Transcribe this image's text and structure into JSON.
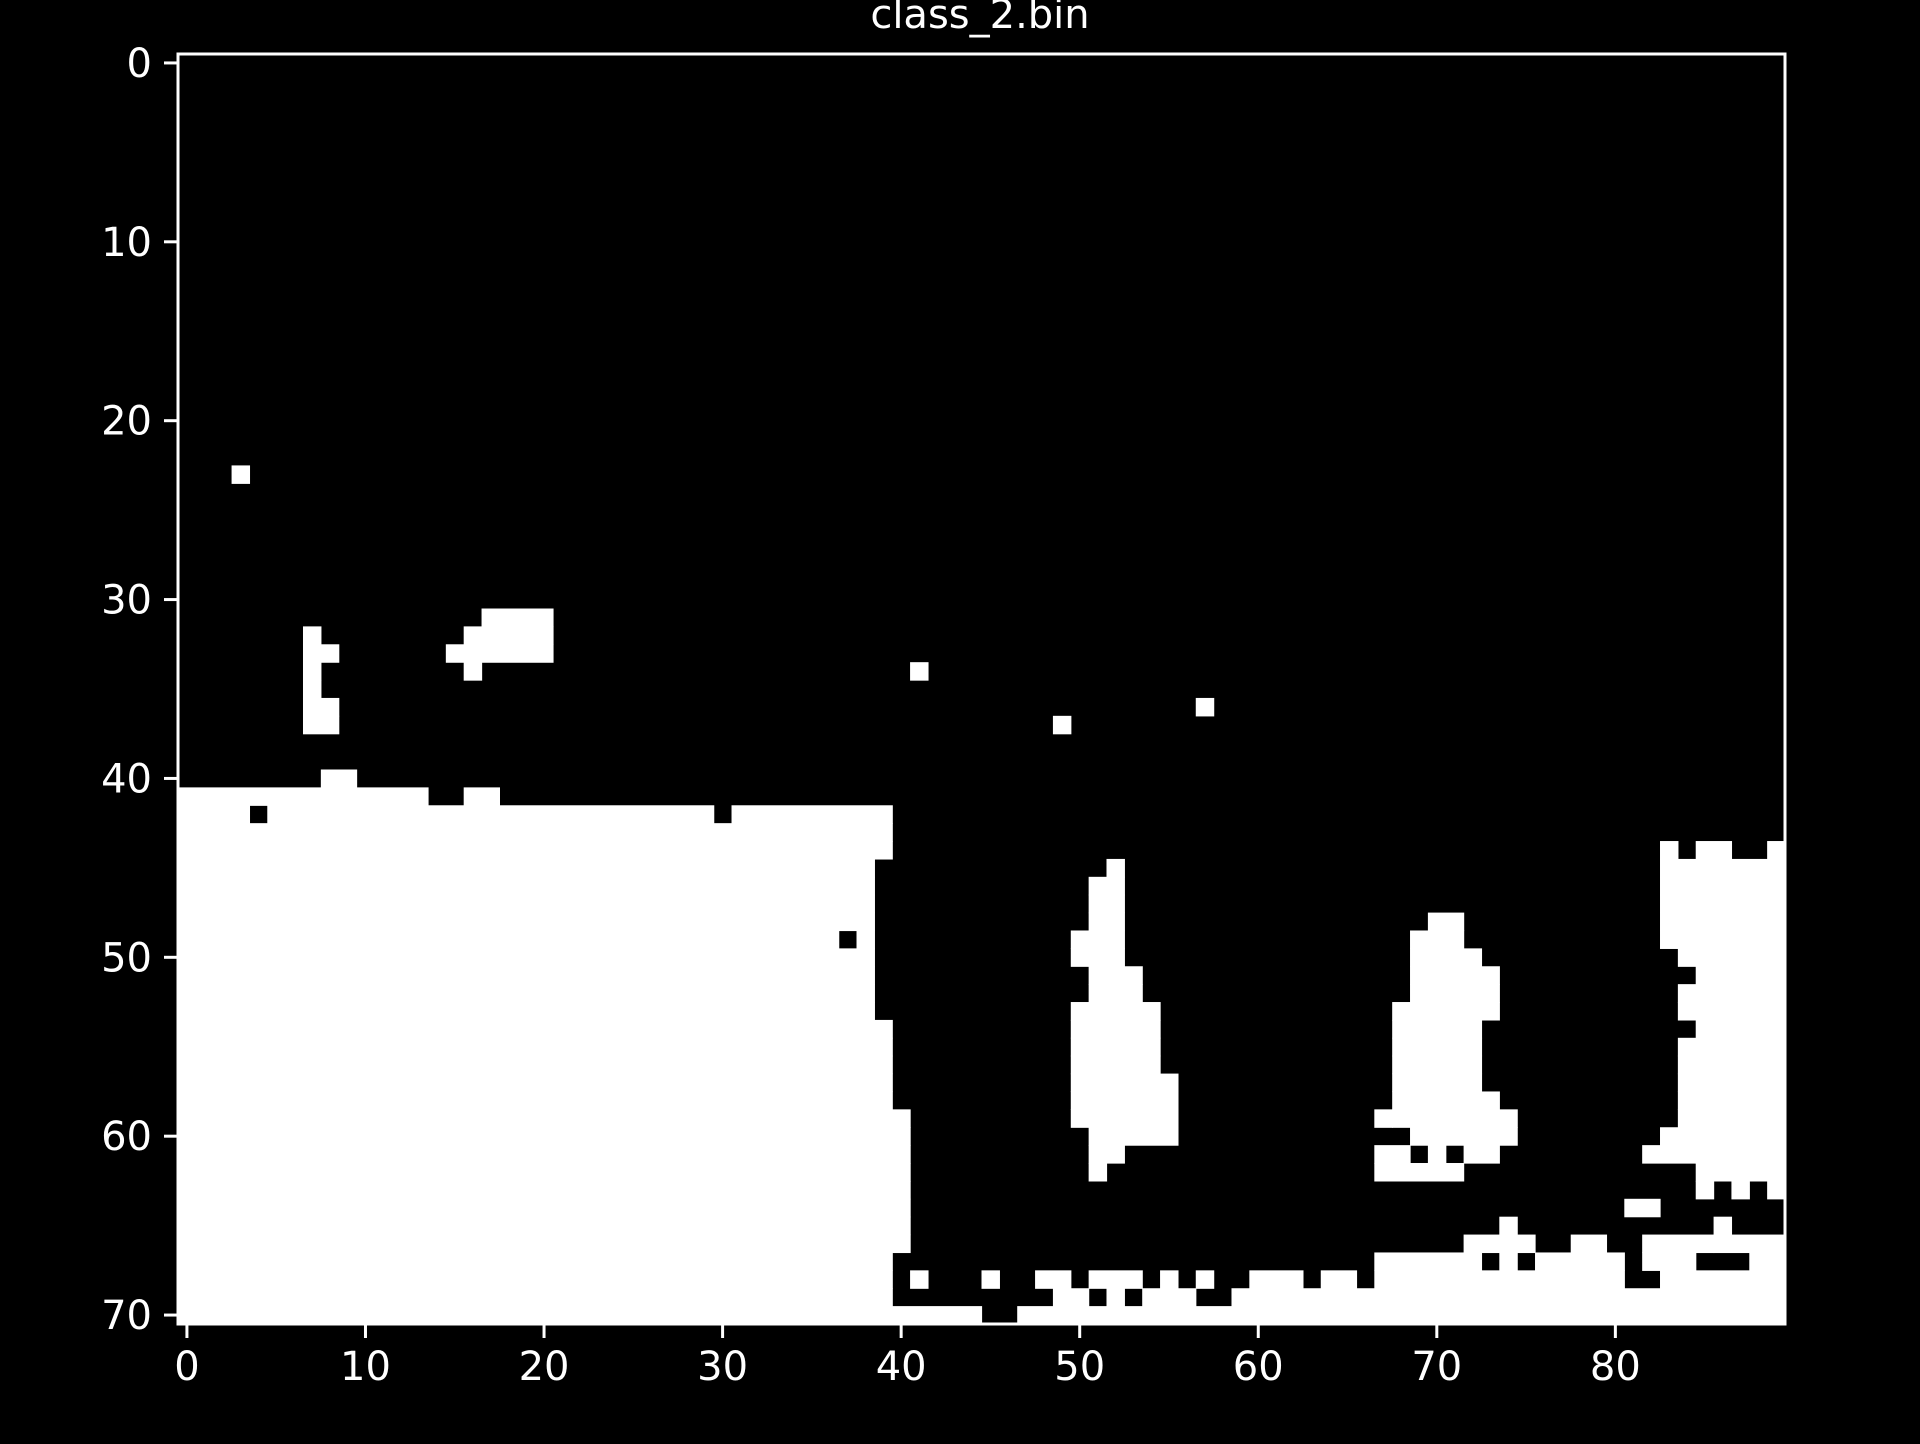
{
  "colors": {
    "background": "#000000",
    "foreground": "#ffffff",
    "mask_on": "#ffffff",
    "mask_off": "#000000"
  },
  "chart_data": {
    "type": "heatmap",
    "title": "class_2.bin",
    "xlabel": "",
    "ylabel": "",
    "grid": false,
    "legend": "none",
    "colormap": "binary (0 = black, 1 = white)",
    "width": 90,
    "height": 71,
    "xlim": [
      -0.5,
      89.5
    ],
    "ylim": [
      70.5,
      -0.5
    ],
    "x_ticks": [
      0,
      10,
      20,
      30,
      40,
      50,
      60,
      70,
      80
    ],
    "x_tick_labels": [
      "0",
      "10",
      "20",
      "30",
      "40",
      "50",
      "60",
      "70",
      "80"
    ],
    "y_ticks": [
      0,
      10,
      20,
      30,
      40,
      50,
      60,
      70
    ],
    "y_tick_labels": [
      "0",
      "10",
      "20",
      "30",
      "40",
      "50",
      "60",
      "70"
    ],
    "white_pixel_runs": [
      [
        23,
        3,
        3
      ],
      [
        31,
        17,
        20
      ],
      [
        32,
        7,
        7
      ],
      [
        32,
        16,
        20
      ],
      [
        33,
        7,
        8
      ],
      [
        33,
        15,
        20
      ],
      [
        34,
        7,
        7
      ],
      [
        34,
        16,
        16
      ],
      [
        34,
        41,
        41
      ],
      [
        35,
        7,
        7
      ],
      [
        36,
        7,
        8
      ],
      [
        36,
        57,
        57
      ],
      [
        37,
        7,
        8
      ],
      [
        37,
        49,
        49
      ],
      [
        40,
        8,
        9
      ],
      [
        41,
        0,
        13
      ],
      [
        41,
        16,
        17
      ],
      [
        42,
        0,
        3
      ],
      [
        42,
        5,
        29
      ],
      [
        42,
        31,
        39
      ],
      [
        43,
        0,
        39
      ],
      [
        44,
        0,
        39
      ],
      [
        44,
        83,
        83
      ],
      [
        44,
        85,
        86
      ],
      [
        44,
        89,
        89
      ],
      [
        45,
        0,
        38
      ],
      [
        45,
        52,
        52
      ],
      [
        45,
        83,
        89
      ],
      [
        46,
        0,
        38
      ],
      [
        46,
        51,
        52
      ],
      [
        46,
        83,
        89
      ],
      [
        47,
        0,
        38
      ],
      [
        47,
        51,
        52
      ],
      [
        47,
        83,
        89
      ],
      [
        48,
        0,
        38
      ],
      [
        48,
        51,
        52
      ],
      [
        48,
        70,
        71
      ],
      [
        48,
        83,
        89
      ],
      [
        49,
        0,
        36
      ],
      [
        49,
        38,
        38
      ],
      [
        49,
        50,
        52
      ],
      [
        49,
        69,
        71
      ],
      [
        49,
        83,
        89
      ],
      [
        50,
        0,
        38
      ],
      [
        50,
        50,
        52
      ],
      [
        50,
        69,
        72
      ],
      [
        50,
        84,
        89
      ],
      [
        51,
        0,
        38
      ],
      [
        51,
        51,
        53
      ],
      [
        51,
        69,
        73
      ],
      [
        51,
        85,
        89
      ],
      [
        52,
        0,
        38
      ],
      [
        52,
        51,
        53
      ],
      [
        52,
        69,
        73
      ],
      [
        52,
        84,
        89
      ],
      [
        53,
        0,
        38
      ],
      [
        53,
        50,
        54
      ],
      [
        53,
        68,
        73
      ],
      [
        53,
        84,
        89
      ],
      [
        54,
        0,
        39
      ],
      [
        54,
        50,
        54
      ],
      [
        54,
        68,
        72
      ],
      [
        54,
        85,
        89
      ],
      [
        55,
        0,
        39
      ],
      [
        55,
        50,
        54
      ],
      [
        55,
        68,
        72
      ],
      [
        55,
        84,
        89
      ],
      [
        56,
        0,
        39
      ],
      [
        56,
        50,
        54
      ],
      [
        56,
        68,
        72
      ],
      [
        56,
        84,
        89
      ],
      [
        57,
        0,
        39
      ],
      [
        57,
        50,
        55
      ],
      [
        57,
        68,
        72
      ],
      [
        57,
        84,
        89
      ],
      [
        58,
        0,
        39
      ],
      [
        58,
        50,
        55
      ],
      [
        58,
        68,
        73
      ],
      [
        58,
        84,
        89
      ],
      [
        59,
        0,
        40
      ],
      [
        59,
        50,
        55
      ],
      [
        59,
        67,
        67
      ],
      [
        59,
        68,
        74
      ],
      [
        59,
        84,
        89
      ],
      [
        60,
        0,
        40
      ],
      [
        60,
        51,
        55
      ],
      [
        60,
        69,
        74
      ],
      [
        60,
        83,
        89
      ],
      [
        61,
        0,
        40
      ],
      [
        61,
        51,
        52
      ],
      [
        61,
        67,
        68
      ],
      [
        61,
        70,
        70
      ],
      [
        61,
        72,
        73
      ],
      [
        61,
        82,
        84
      ],
      [
        61,
        85,
        89
      ],
      [
        62,
        0,
        40
      ],
      [
        62,
        51,
        51
      ],
      [
        62,
        67,
        71
      ],
      [
        62,
        85,
        89
      ],
      [
        63,
        0,
        40
      ],
      [
        63,
        85,
        85
      ],
      [
        63,
        87,
        87
      ],
      [
        63,
        89,
        89
      ],
      [
        64,
        0,
        40
      ],
      [
        64,
        81,
        82
      ],
      [
        65,
        0,
        40
      ],
      [
        65,
        74,
        74
      ],
      [
        65,
        86,
        86
      ],
      [
        66,
        0,
        40
      ],
      [
        66,
        72,
        75
      ],
      [
        66,
        78,
        79
      ],
      [
        66,
        82,
        85
      ],
      [
        66,
        86,
        89
      ],
      [
        67,
        0,
        39
      ],
      [
        67,
        67,
        72
      ],
      [
        67,
        74,
        74
      ],
      [
        67,
        76,
        80
      ],
      [
        67,
        82,
        84
      ],
      [
        67,
        88,
        89
      ],
      [
        68,
        0,
        39
      ],
      [
        68,
        41,
        41
      ],
      [
        68,
        45,
        45
      ],
      [
        68,
        48,
        49
      ],
      [
        68,
        51,
        53
      ],
      [
        68,
        55,
        55
      ],
      [
        68,
        57,
        57
      ],
      [
        68,
        60,
        62
      ],
      [
        68,
        64,
        65
      ],
      [
        68,
        67,
        80
      ],
      [
        68,
        83,
        89
      ],
      [
        69,
        0,
        39
      ],
      [
        69,
        49,
        50
      ],
      [
        69,
        52,
        52
      ],
      [
        69,
        54,
        56
      ],
      [
        69,
        59,
        89
      ],
      [
        70,
        0,
        44
      ],
      [
        70,
        47,
        89
      ]
    ]
  }
}
